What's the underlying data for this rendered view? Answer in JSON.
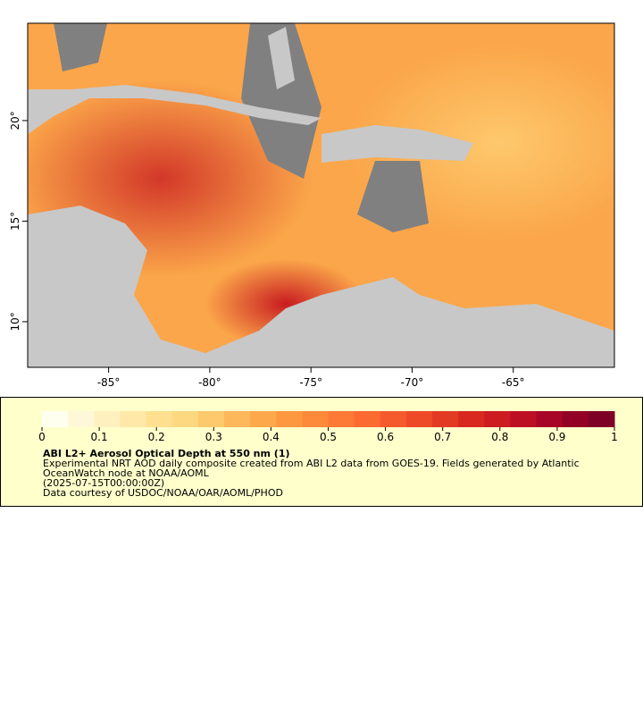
{
  "map": {
    "xlim": [
      -89,
      -60
    ],
    "ylim": [
      7.73,
      24.84
    ],
    "xticks": [
      {
        "value": -85,
        "label": "-85°"
      },
      {
        "value": -80,
        "label": "-80°"
      },
      {
        "value": -75,
        "label": "-75°"
      },
      {
        "value": -70,
        "label": "-70°"
      },
      {
        "value": -65,
        "label": "-65°"
      }
    ],
    "yticks": [
      {
        "value": 10,
        "label": "10°"
      },
      {
        "value": 15,
        "label": "15°"
      },
      {
        "value": 20,
        "label": "20°"
      }
    ]
  },
  "colorbar": {
    "range": [
      0,
      1
    ],
    "ticks": [
      0,
      0.1,
      0.2,
      0.3,
      0.4,
      0.5,
      0.6,
      0.7,
      0.8,
      0.9,
      1
    ],
    "colors": [
      "#fffff0",
      "#fff8d8",
      "#fff0c0",
      "#ffe8a8",
      "#fee090",
      "#fed880",
      "#fec86c",
      "#feb85c",
      "#fea84c",
      "#fd9841",
      "#fd8a3b",
      "#fc7a35",
      "#fb6a30",
      "#f55a2c",
      "#ee4a28",
      "#e33a24",
      "#d82820",
      "#cc1c22",
      "#bd0f24",
      "#a80626",
      "#920026",
      "#7f0026"
    ]
  },
  "legend": {
    "title": "ABI L2+ Aerosol Optical Depth at 550 nm (1)",
    "lines": [
      "Experimental NRT AOD daily composite created from ABI L2 data from GOES-19. Fields generated by Atlantic",
      "OceanWatch node at NOAA/AOML",
      "(2025-07-15T00:00:00Z)",
      "Data courtesy of USDOC/NOAA/OAR/AOML/PHOD"
    ]
  }
}
